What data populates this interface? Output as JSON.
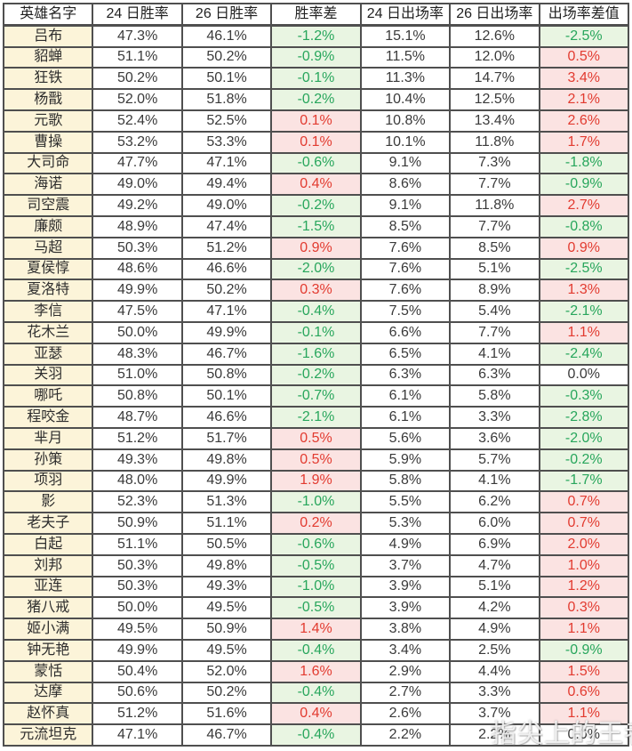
{
  "watermark": "指尖上的王者",
  "colors": {
    "border": "#4f4f4f",
    "name_column_bg": "#fcf4d9",
    "positive_diff_bg": "#fbe3e2",
    "positive_diff_text": "#e23b30",
    "negative_diff_bg": "#e9f5e2",
    "negative_diff_text": "#28a65c"
  },
  "chart_data": {
    "type": "table",
    "title": "",
    "columns": [
      "英雄名字",
      "24 日胜率",
      "26 日胜率",
      "胜率差",
      "24 日出场率",
      "26 日出场率",
      "出场率差值"
    ],
    "rows": [
      {
        "name": "吕布",
        "wr24": "47.3%",
        "wr26": "46.1%",
        "wr_diff": "-1.2%",
        "wr_diff_type": "down",
        "ar24": "15.1%",
        "ar26": "12.6%",
        "ar_diff": "-2.5%",
        "ar_diff_type": "down"
      },
      {
        "name": "貂蝉",
        "wr24": "51.1%",
        "wr26": "50.2%",
        "wr_diff": "-0.9%",
        "wr_diff_type": "down",
        "ar24": "11.5%",
        "ar26": "12.0%",
        "ar_diff": "0.5%",
        "ar_diff_type": "up"
      },
      {
        "name": "狂铁",
        "wr24": "50.2%",
        "wr26": "50.1%",
        "wr_diff": "-0.1%",
        "wr_diff_type": "down",
        "ar24": "11.3%",
        "ar26": "14.7%",
        "ar_diff": "3.4%",
        "ar_diff_type": "up"
      },
      {
        "name": "杨戬",
        "wr24": "52.0%",
        "wr26": "51.8%",
        "wr_diff": "-0.2%",
        "wr_diff_type": "down",
        "ar24": "10.4%",
        "ar26": "12.5%",
        "ar_diff": "2.1%",
        "ar_diff_type": "up"
      },
      {
        "name": "元歌",
        "wr24": "52.4%",
        "wr26": "52.5%",
        "wr_diff": "0.1%",
        "wr_diff_type": "up",
        "ar24": "10.8%",
        "ar26": "13.4%",
        "ar_diff": "2.6%",
        "ar_diff_type": "up"
      },
      {
        "name": "曹操",
        "wr24": "53.2%",
        "wr26": "53.3%",
        "wr_diff": "0.1%",
        "wr_diff_type": "up",
        "ar24": "10.1%",
        "ar26": "11.8%",
        "ar_diff": "1.7%",
        "ar_diff_type": "up"
      },
      {
        "name": "大司命",
        "wr24": "47.7%",
        "wr26": "47.1%",
        "wr_diff": "-0.6%",
        "wr_diff_type": "down",
        "ar24": "9.1%",
        "ar26": "7.3%",
        "ar_diff": "-1.8%",
        "ar_diff_type": "down"
      },
      {
        "name": "海诺",
        "wr24": "49.0%",
        "wr26": "49.4%",
        "wr_diff": "0.4%",
        "wr_diff_type": "up",
        "ar24": "8.6%",
        "ar26": "7.7%",
        "ar_diff": "-0.9%",
        "ar_diff_type": "down"
      },
      {
        "name": "司空震",
        "wr24": "49.2%",
        "wr26": "49.0%",
        "wr_diff": "-0.2%",
        "wr_diff_type": "down",
        "ar24": "9.1%",
        "ar26": "11.8%",
        "ar_diff": "2.7%",
        "ar_diff_type": "up"
      },
      {
        "name": "廉颇",
        "wr24": "48.9%",
        "wr26": "47.4%",
        "wr_diff": "-1.5%",
        "wr_diff_type": "down",
        "ar24": "8.5%",
        "ar26": "7.7%",
        "ar_diff": "-0.8%",
        "ar_diff_type": "down"
      },
      {
        "name": "马超",
        "wr24": "50.3%",
        "wr26": "51.2%",
        "wr_diff": "0.9%",
        "wr_diff_type": "up",
        "ar24": "7.6%",
        "ar26": "8.5%",
        "ar_diff": "0.9%",
        "ar_diff_type": "up"
      },
      {
        "name": "夏侯惇",
        "wr24": "48.6%",
        "wr26": "46.6%",
        "wr_diff": "-2.0%",
        "wr_diff_type": "down",
        "ar24": "7.6%",
        "ar26": "5.1%",
        "ar_diff": "-2.5%",
        "ar_diff_type": "down"
      },
      {
        "name": "夏洛特",
        "wr24": "49.9%",
        "wr26": "50.2%",
        "wr_diff": "0.3%",
        "wr_diff_type": "up",
        "ar24": "7.6%",
        "ar26": "8.9%",
        "ar_diff": "1.3%",
        "ar_diff_type": "up"
      },
      {
        "name": "李信",
        "wr24": "47.5%",
        "wr26": "47.1%",
        "wr_diff": "-0.4%",
        "wr_diff_type": "down",
        "ar24": "7.5%",
        "ar26": "5.4%",
        "ar_diff": "-2.1%",
        "ar_diff_type": "down"
      },
      {
        "name": "花木兰",
        "wr24": "50.0%",
        "wr26": "49.9%",
        "wr_diff": "-0.1%",
        "wr_diff_type": "down",
        "ar24": "6.6%",
        "ar26": "7.7%",
        "ar_diff": "1.1%",
        "ar_diff_type": "up"
      },
      {
        "name": "亚瑟",
        "wr24": "48.3%",
        "wr26": "46.7%",
        "wr_diff": "-1.6%",
        "wr_diff_type": "down",
        "ar24": "6.5%",
        "ar26": "4.1%",
        "ar_diff": "-2.4%",
        "ar_diff_type": "down"
      },
      {
        "name": "关羽",
        "wr24": "51.0%",
        "wr26": "50.8%",
        "wr_diff": "-0.2%",
        "wr_diff_type": "down",
        "ar24": "6.3%",
        "ar26": "6.3%",
        "ar_diff": "0.0%",
        "ar_diff_type": "zero"
      },
      {
        "name": "哪吒",
        "wr24": "50.8%",
        "wr26": "50.1%",
        "wr_diff": "-0.7%",
        "wr_diff_type": "down",
        "ar24": "6.1%",
        "ar26": "5.8%",
        "ar_diff": "-0.3%",
        "ar_diff_type": "down"
      },
      {
        "name": "程咬金",
        "wr24": "48.7%",
        "wr26": "46.6%",
        "wr_diff": "-2.1%",
        "wr_diff_type": "down",
        "ar24": "6.1%",
        "ar26": "3.3%",
        "ar_diff": "-2.8%",
        "ar_diff_type": "down"
      },
      {
        "name": "芈月",
        "wr24": "51.2%",
        "wr26": "51.7%",
        "wr_diff": "0.5%",
        "wr_diff_type": "up",
        "ar24": "5.6%",
        "ar26": "3.6%",
        "ar_diff": "-2.0%",
        "ar_diff_type": "down"
      },
      {
        "name": "孙策",
        "wr24": "49.3%",
        "wr26": "49.8%",
        "wr_diff": "0.5%",
        "wr_diff_type": "up",
        "ar24": "5.9%",
        "ar26": "5.7%",
        "ar_diff": "-0.2%",
        "ar_diff_type": "down"
      },
      {
        "name": "项羽",
        "wr24": "48.0%",
        "wr26": "49.9%",
        "wr_diff": "1.9%",
        "wr_diff_type": "up",
        "ar24": "5.8%",
        "ar26": "4.1%",
        "ar_diff": "-1.7%",
        "ar_diff_type": "down"
      },
      {
        "name": "影",
        "wr24": "52.3%",
        "wr26": "51.3%",
        "wr_diff": "-1.0%",
        "wr_diff_type": "down",
        "ar24": "5.5%",
        "ar26": "6.2%",
        "ar_diff": "0.7%",
        "ar_diff_type": "up"
      },
      {
        "name": "老夫子",
        "wr24": "50.9%",
        "wr26": "51.1%",
        "wr_diff": "0.2%",
        "wr_diff_type": "up",
        "ar24": "5.3%",
        "ar26": "6.0%",
        "ar_diff": "0.7%",
        "ar_diff_type": "up"
      },
      {
        "name": "白起",
        "wr24": "51.1%",
        "wr26": "50.5%",
        "wr_diff": "-0.6%",
        "wr_diff_type": "down",
        "ar24": "4.9%",
        "ar26": "6.9%",
        "ar_diff": "2.0%",
        "ar_diff_type": "up"
      },
      {
        "name": "刘邦",
        "wr24": "50.3%",
        "wr26": "49.8%",
        "wr_diff": "-0.5%",
        "wr_diff_type": "down",
        "ar24": "3.7%",
        "ar26": "4.7%",
        "ar_diff": "1.0%",
        "ar_diff_type": "up"
      },
      {
        "name": "亚连",
        "wr24": "50.3%",
        "wr26": "49.3%",
        "wr_diff": "-1.0%",
        "wr_diff_type": "down",
        "ar24": "3.9%",
        "ar26": "5.1%",
        "ar_diff": "1.2%",
        "ar_diff_type": "up"
      },
      {
        "name": "猪八戒",
        "wr24": "50.0%",
        "wr26": "49.5%",
        "wr_diff": "-0.5%",
        "wr_diff_type": "down",
        "ar24": "3.9%",
        "ar26": "4.2%",
        "ar_diff": "0.3%",
        "ar_diff_type": "up"
      },
      {
        "name": "姬小满",
        "wr24": "49.5%",
        "wr26": "50.9%",
        "wr_diff": "1.4%",
        "wr_diff_type": "up",
        "ar24": "3.8%",
        "ar26": "4.9%",
        "ar_diff": "1.1%",
        "ar_diff_type": "up"
      },
      {
        "name": "钟无艳",
        "wr24": "49.9%",
        "wr26": "49.5%",
        "wr_diff": "-0.4%",
        "wr_diff_type": "down",
        "ar24": "3.4%",
        "ar26": "2.5%",
        "ar_diff": "-0.9%",
        "ar_diff_type": "down"
      },
      {
        "name": "蒙恬",
        "wr24": "50.4%",
        "wr26": "52.0%",
        "wr_diff": "1.6%",
        "wr_diff_type": "up",
        "ar24": "2.9%",
        "ar26": "4.4%",
        "ar_diff": "1.5%",
        "ar_diff_type": "up"
      },
      {
        "name": "达摩",
        "wr24": "50.6%",
        "wr26": "50.2%",
        "wr_diff": "-0.4%",
        "wr_diff_type": "down",
        "ar24": "2.7%",
        "ar26": "3.3%",
        "ar_diff": "0.6%",
        "ar_diff_type": "up"
      },
      {
        "name": "赵怀真",
        "wr24": "51.2%",
        "wr26": "51.6%",
        "wr_diff": "0.4%",
        "wr_diff_type": "up",
        "ar24": "2.6%",
        "ar26": "3.7%",
        "ar_diff": "1.1%",
        "ar_diff_type": "up"
      },
      {
        "name": "元流坦克",
        "wr24": "47.1%",
        "wr26": "46.7%",
        "wr_diff": "-0.4%",
        "wr_diff_type": "down",
        "ar24": "2.2%",
        "ar26": "2.2%",
        "ar_diff": "0.0%",
        "ar_diff_type": "zero"
      }
    ]
  }
}
